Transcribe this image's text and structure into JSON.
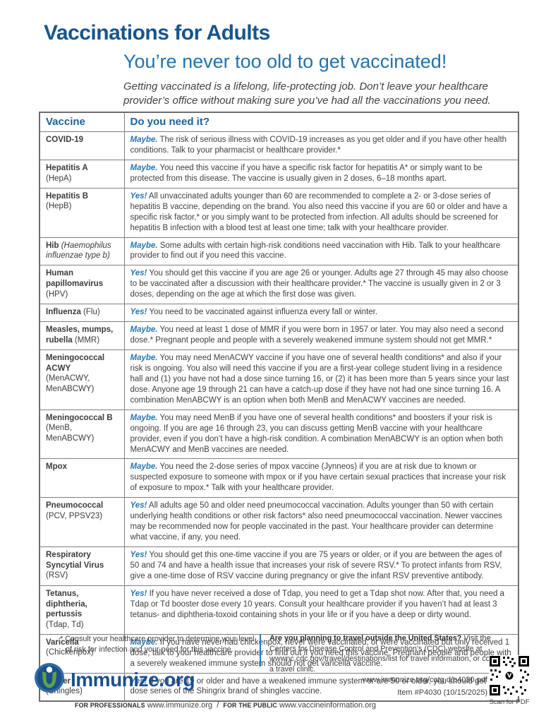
{
  "page": {
    "title": "Vaccinations for Adults",
    "subtitle": "You’re never too old to get vaccinated!",
    "intro": "Getting vaccinated is a lifelong, life-protecting job. Don’t leave your healthcare provider’s office without making sure you’ve had all the vaccinations you need."
  },
  "colors": {
    "title_blue": "#17558c",
    "subtitle_blue": "#2472a9",
    "header_blue": "#1b6398",
    "verdict_blue": "#2979af",
    "body_text": "#414042",
    "logo_green": "#5ba345",
    "logo_navy": "#1d4f8c"
  },
  "table": {
    "headers": [
      "Vaccine",
      "Do you need it?"
    ],
    "rows": [
      {
        "name": "COVID-19",
        "note": "",
        "note_block": false,
        "note_italic": false,
        "verdict": "Maybe.",
        "text": "The risk of serious illness with COVID-19 increases as you get older and if you have other health conditions. Talk to your pharmacist or healthcare provider.*"
      },
      {
        "name": "Hepatitis A",
        "note": "(HepA)",
        "note_block": true,
        "note_italic": false,
        "verdict": "Maybe.",
        "text": "You need this vaccine if you have a specific risk factor for hepatitis A* or simply want to be protected from this disease. The vaccine is usually given in 2 doses, 6–18 months apart."
      },
      {
        "name": "Hepatitis B",
        "note": "(HepB)",
        "note_block": true,
        "note_italic": false,
        "verdict": "Yes!",
        "text": "All unvaccinated adults younger than 60 are recommended to complete a 2- or 3-dose series of hepatitis B vaccine, depending on the brand. You also need this vaccine if you are 60 or older and have a specific risk factor,* or you simply want to be protected from infection. All adults should be screened for hepatitis B infection with a blood test at least one time; talk with your healthcare provider."
      },
      {
        "name": "Hib",
        "note": "(Haemophilus influenzae type b)",
        "note_block": false,
        "note_italic": true,
        "verdict": "Maybe.",
        "text": "Some adults with certain high-risk conditions need vaccination with Hib. Talk to your healthcare provider to find out if you need this vaccine."
      },
      {
        "name": "Human papillomavirus",
        "note": "(HPV)",
        "note_block": true,
        "note_italic": false,
        "verdict": "Yes!",
        "text": "You should get this vaccine if you are age 26 or younger. Adults age 27 through 45 may also choose to be vaccinated after a discussion with their healthcare provider.* The vaccine is usually given in 2 or 3 doses, depending on the age at which the first dose was given."
      },
      {
        "name": "Influenza",
        "note": "(Flu)",
        "note_block": false,
        "note_italic": false,
        "verdict": "Yes!",
        "text": "You need to be vaccinated against influenza every fall or winter."
      },
      {
        "name": "Measles, mumps, rubella",
        "note": "(MMR)",
        "note_block": false,
        "note_italic": false,
        "verdict": "Maybe.",
        "text": "You need at least 1 dose of MMR if you were born in 1957 or later. You may also need a second dose.* Pregnant people and people with a severely weakened immune system should not get MMR.*"
      },
      {
        "name": "Meningococcal ACWY",
        "note": "(MenACWY, MenABCWY)",
        "note_block": true,
        "note_italic": false,
        "verdict": "Maybe.",
        "text": "You may need MenACWY vaccine if you have one of several health conditions* and also if your risk is ongoing. You also will need this vaccine if you are a first-year college student living in a residence hall and (1) you have not had a dose since turning 16, or (2) it has been more than 5 years since your last dose. Anyone age 19 through 21 can have a catch-up dose if they have not had one since turning 16. A combination MenABCWY is an option when both MenB and MenACWY vaccines are needed."
      },
      {
        "name": "Meningococcal B",
        "note": "(MenB, MenABCWY)",
        "note_block": true,
        "note_italic": false,
        "verdict": "Maybe.",
        "text": "You may need MenB if you have one of several health conditions* and boosters if your risk is ongoing. If you are age 16 through 23, you can discuss getting MenB vaccine with your healthcare provider, even if you don’t have a high-risk condition. A combination MenABCWY is an option when both MenACWY and MenB vaccines are needed."
      },
      {
        "name": "Mpox",
        "note": "",
        "note_block": false,
        "note_italic": false,
        "verdict": "Maybe.",
        "text": "You need the 2-dose series of mpox vaccine (Jynneos) if you are at risk due to known or suspected exposure to someone with mpox or if you have certain sexual practices that increase your risk of exposure to mpox.* Talk with your healthcare provider."
      },
      {
        "name": "Pneumococcal",
        "note": "(PCV, PPSV23)",
        "note_block": true,
        "note_italic": false,
        "verdict": "Yes!",
        "text": "All adults age 50 and older need pneumococcal vaccination. Adults younger than 50 with certain underlying health conditions or other risk factors* also need pneumococcal vaccination. Newer vaccines may be recommended now for people vaccinated in the past. Your healthcare provider can determine what vaccine, if any, you need."
      },
      {
        "name": "Respiratory Syncytial Virus",
        "note": "(RSV)",
        "note_block": true,
        "note_italic": false,
        "verdict": "Yes!",
        "text": "You should get this one-time vaccine if you are 75 years or older, or if you are between the ages of 50 and 74 and have a health issue that increases your risk of severe RSV.* To protect infants from RSV, give a one-time dose of RSV vaccine during pregnancy or give the infant RSV preventive antibody."
      },
      {
        "name": "Tetanus, diphtheria, pertussis",
        "note": "(Tdap, Td)",
        "note_block": true,
        "note_italic": false,
        "verdict": "Yes!",
        "text": "If you have never received a dose of Tdap, you need to get a Tdap shot now. After that, you need a Tdap or Td booster dose every 10 years. Consult your healthcare provider if you haven’t had at least 3 tetanus- and diphtheria-toxoid containing shots in your life or if you have a deep or dirty wound."
      },
      {
        "name": "Varicella",
        "note": "(Chickenpox)",
        "note_block": true,
        "note_italic": false,
        "verdict": "Maybe.",
        "text": "If you have never had chickenpox, never were vaccinated, or were vaccinated but only received 1 dose, talk to your healthcare provider to find out if you need this vaccine. Pregnant people and people with a severely weakened immune system should not get varicella vaccine."
      },
      {
        "name": "Zoster",
        "note": "(Shingles)",
        "note_block": true,
        "note_italic": false,
        "verdict": "Yes!",
        "text": "If you are 19 or older and have a weakened immune system or are 50 or older, you should get a 2-dose series of the Shingrix brand of shingles vaccine."
      }
    ]
  },
  "footnotes": {
    "asterisk": "* Consult your healthcare provider to determine your level of risk for infection and your need for this vaccine.",
    "travel_lead": "Are you planning to travel outside the United States?",
    "travel_text": " Visit the Centers for Disease Control and Prevention’s (CDC) website at wwwnc.cdc.gov/travel/destinations/list for travel information, or consult a travel clinic."
  },
  "footer": {
    "logo_text": "Immunize.org",
    "pdf_url": "www.immunize.org/catg.d/p4030.pdf",
    "item_line": "Item #P4030 (10/15/2025)",
    "scan_label": "Scan for PDF",
    "professionals_label": "FOR PROFESSIONALS",
    "professionals_url": "www.immunize.org",
    "separator": "/",
    "public_label": "FOR THE PUBLIC",
    "public_url": "www.vaccineinformation.org"
  }
}
